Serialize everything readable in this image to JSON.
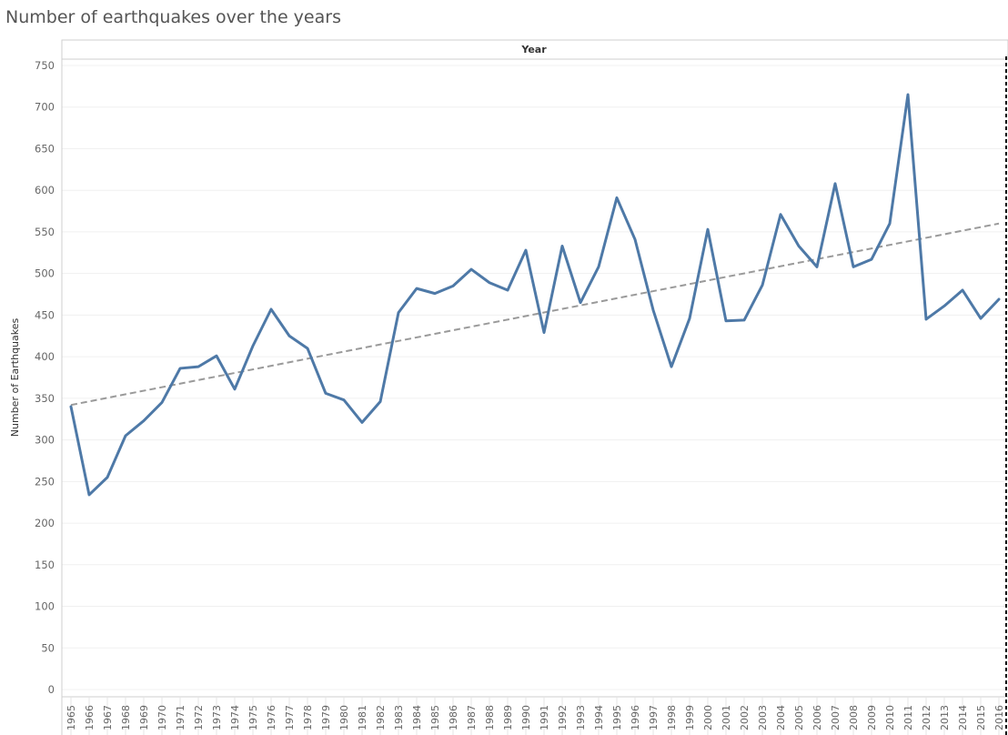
{
  "chart_data": {
    "type": "line",
    "title": "Number of earthquakes over the years",
    "xlabel": "Year",
    "ylabel": "Number of Earthquakes",
    "ylim": [
      0,
      750
    ],
    "yticks": [
      0,
      50,
      100,
      150,
      200,
      250,
      300,
      350,
      400,
      450,
      500,
      550,
      600,
      650,
      700,
      750
    ],
    "grid": true,
    "x": [
      "1965",
      "1966",
      "1967",
      "1968",
      "1969",
      "1970",
      "1971",
      "1972",
      "1973",
      "1974",
      "1975",
      "1976",
      "1977",
      "1978",
      "1979",
      "1980",
      "1981",
      "1982",
      "1983",
      "1984",
      "1985",
      "1986",
      "1987",
      "1988",
      "1989",
      "1990",
      "1991",
      "1992",
      "1993",
      "1994",
      "1995",
      "1996",
      "1997",
      "1998",
      "1999",
      "2000",
      "2001",
      "2002",
      "2003",
      "2004",
      "2005",
      "2006",
      "2007",
      "2008",
      "2009",
      "2010",
      "2011",
      "2012",
      "2013",
      "2014",
      "2015",
      "2016"
    ],
    "series": [
      {
        "values": [
          340,
          234,
          255,
          305,
          323,
          345,
          386,
          388,
          401,
          361,
          413,
          457,
          425,
          410,
          356,
          348,
          321,
          346,
          453,
          482,
          476,
          485,
          505,
          489,
          480,
          528,
          429,
          533,
          465,
          508,
          591,
          541,
          456,
          388,
          446,
          553,
          443,
          444,
          486,
          571,
          533,
          508,
          608,
          508,
          517,
          560,
          715,
          445,
          461,
          480,
          446,
          469
        ],
        "color": "#4e79a7"
      }
    ],
    "trend_line": {
      "start": [
        1965,
        342
      ],
      "end": [
        2016,
        560
      ],
      "color": "#9a9a9a",
      "style": "dashed"
    }
  }
}
